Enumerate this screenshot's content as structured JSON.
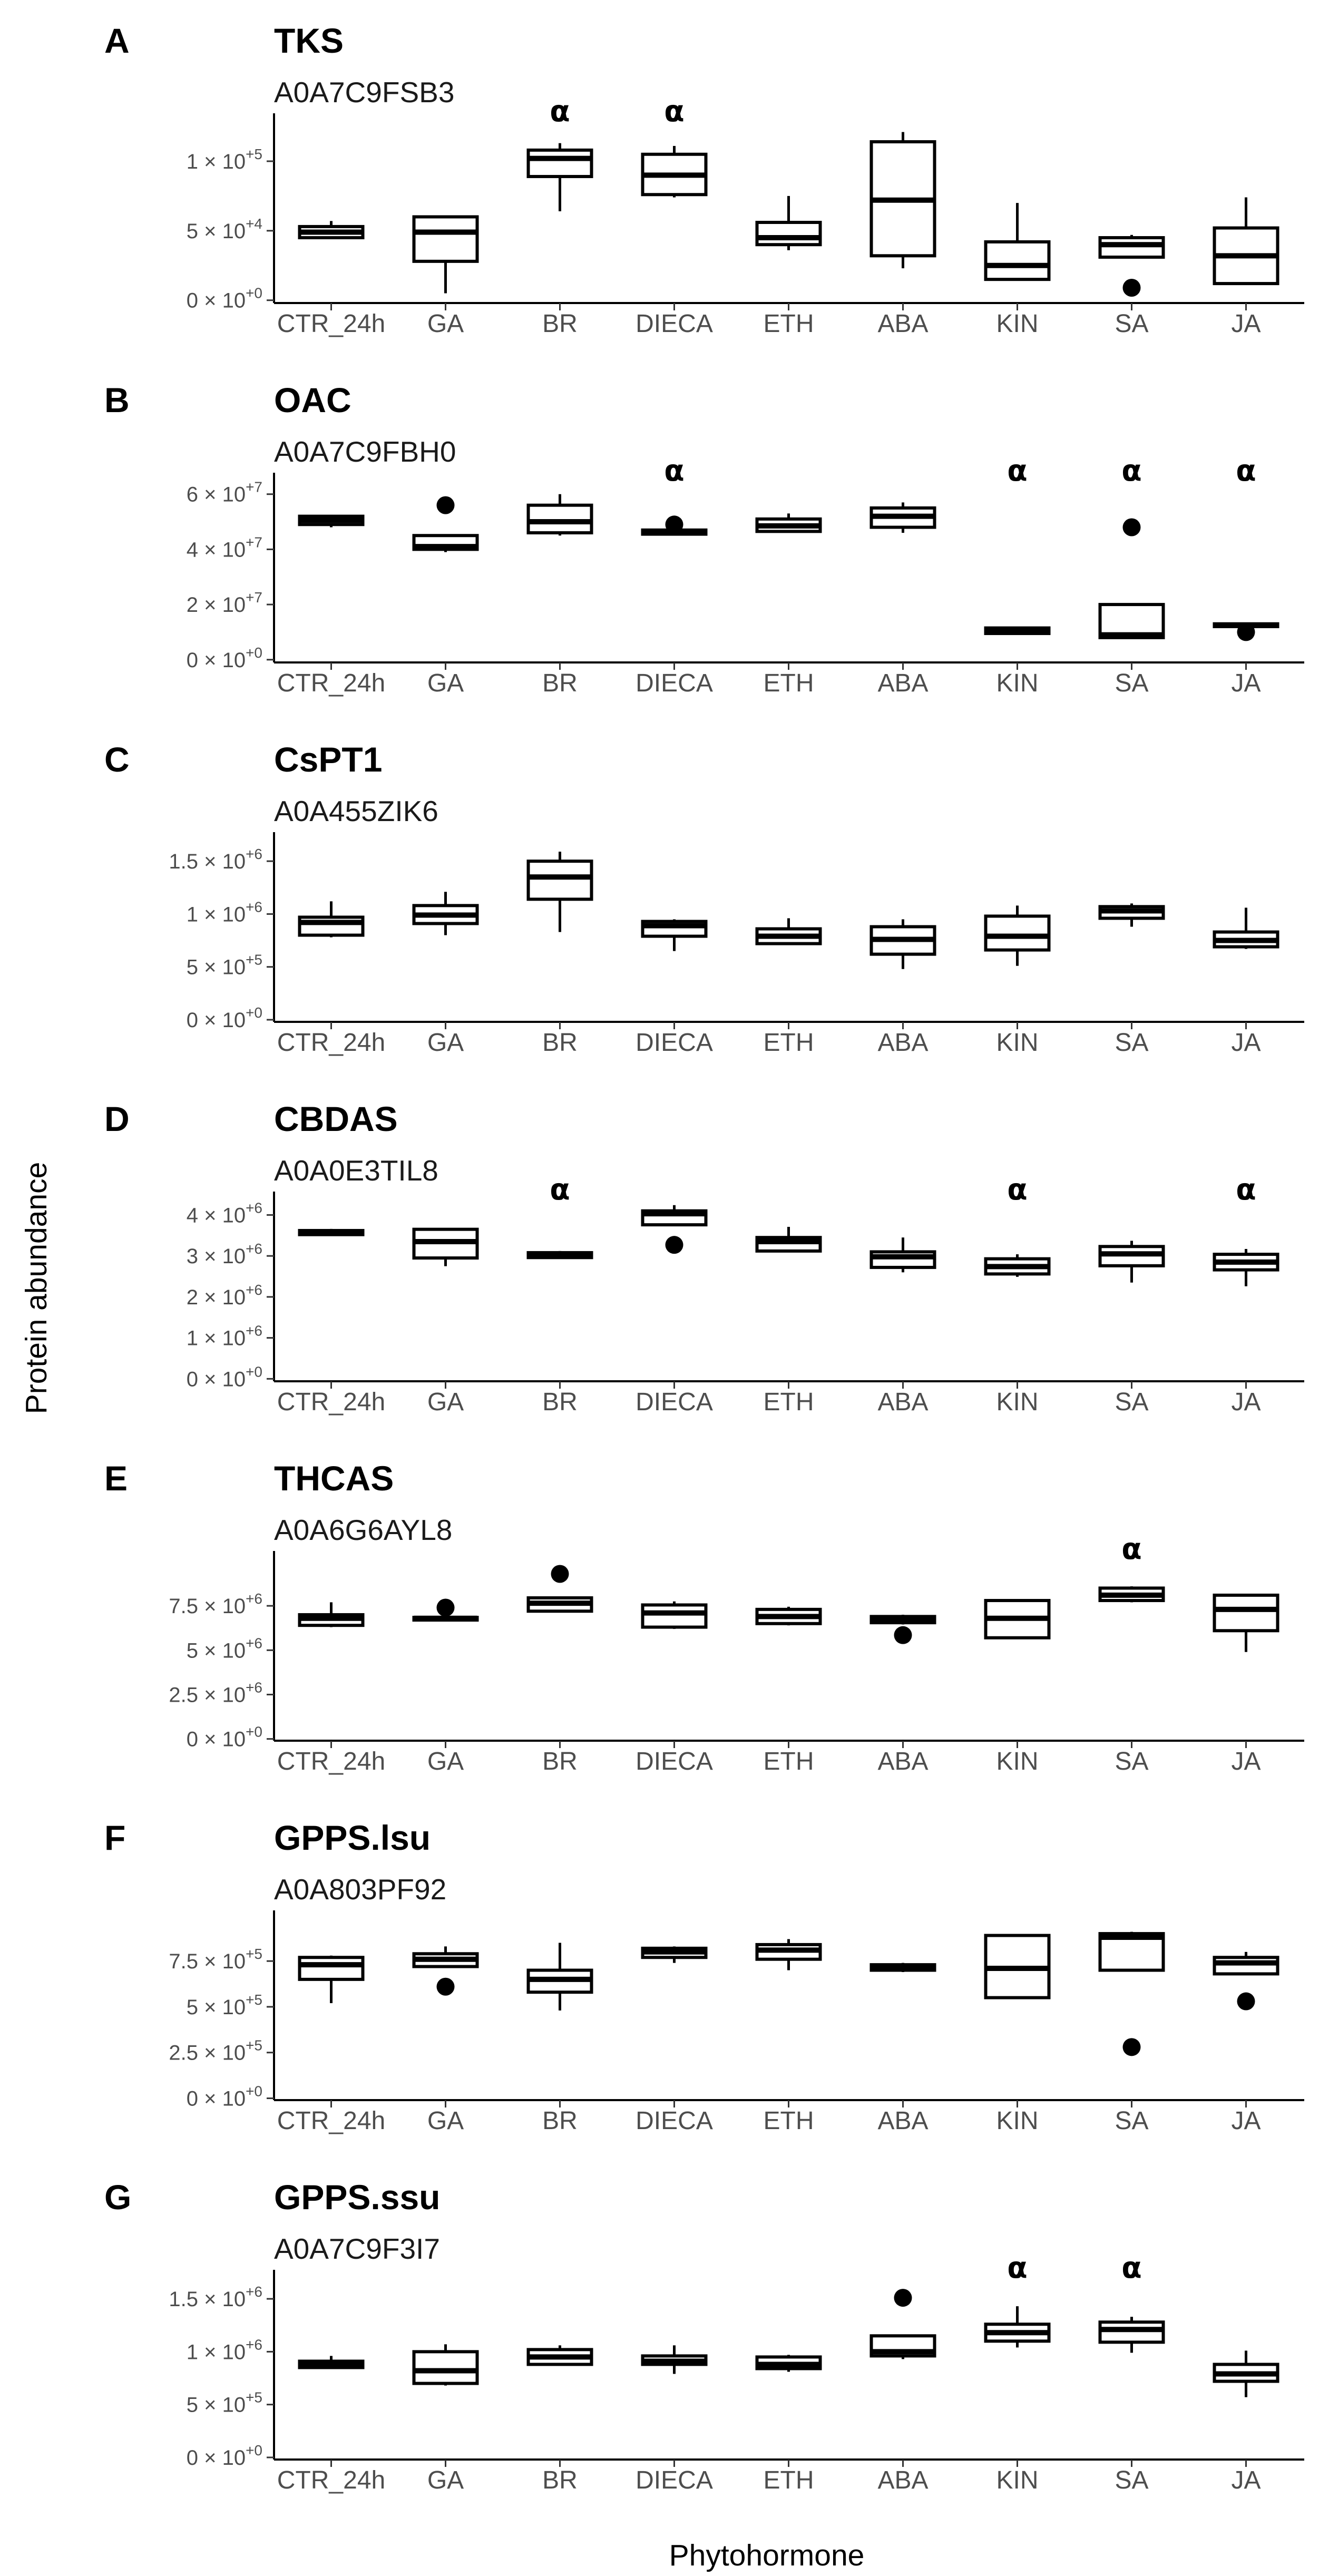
{
  "figure": {
    "y_axis_title": "Protein abundance",
    "x_axis_title": "Phytohormone",
    "categories": [
      "CTR_24h",
      "GA",
      "BR",
      "DIECA",
      "ETH",
      "ABA",
      "KIN",
      "SA",
      "JA"
    ]
  },
  "chart_data": [
    {
      "type": "box",
      "panel": "A",
      "title": "TKS",
      "subtitle": "A0A7C9FSB3",
      "yticks": [
        0,
        50000,
        100000
      ],
      "ytick_labels": [
        [
          "0 × 10",
          "+0"
        ],
        [
          "5 × 10",
          "+4"
        ],
        [
          "1 × 10",
          "+5"
        ]
      ],
      "ylim": [
        -2000,
        125000
      ],
      "boxes": [
        {
          "category": "CTR_24h",
          "lower": 44000,
          "q1": 45000,
          "median": 49000,
          "q3": 53000,
          "upper": 57000,
          "outliers": []
        },
        {
          "category": "GA",
          "lower": 5000,
          "q1": 28000,
          "median": 49000,
          "q3": 60000,
          "upper": 60000,
          "outliers": []
        },
        {
          "category": "BR",
          "lower": 64000,
          "q1": 89000,
          "median": 102000,
          "q3": 108000,
          "upper": 113000,
          "outliers": []
        },
        {
          "category": "DIECA",
          "lower": 74000,
          "q1": 76000,
          "median": 90000,
          "q3": 105000,
          "upper": 111000,
          "outliers": []
        },
        {
          "category": "ETH",
          "lower": 36000,
          "q1": 40000,
          "median": 45000,
          "q3": 56000,
          "upper": 75000,
          "outliers": []
        },
        {
          "category": "ABA",
          "lower": 23000,
          "q1": 32000,
          "median": 72000,
          "q3": 114000,
          "upper": 121000,
          "outliers": []
        },
        {
          "category": "KIN",
          "lower": 15000,
          "q1": 15000,
          "median": 25000,
          "q3": 42000,
          "upper": 70000,
          "outliers": []
        },
        {
          "category": "SA",
          "lower": 31000,
          "q1": 31000,
          "median": 40000,
          "q3": 45000,
          "upper": 47000,
          "outliers": [
            9000
          ]
        },
        {
          "category": "JA",
          "lower": 11000,
          "q1": 12000,
          "median": 32000,
          "q3": 52000,
          "upper": 74000,
          "outliers": []
        }
      ],
      "significance": [
        {
          "category": "BR",
          "label": "α"
        },
        {
          "category": "DIECA",
          "label": "α"
        }
      ]
    },
    {
      "type": "box",
      "panel": "B",
      "title": "OAC",
      "subtitle": "A0A7C9FBH0",
      "yticks": [
        0,
        20000000,
        40000000,
        60000000
      ],
      "ytick_labels": [
        [
          "0 × 10",
          "+0"
        ],
        [
          "2 × 10",
          "+7"
        ],
        [
          "4 × 10",
          "+7"
        ],
        [
          "6 × 10",
          "+7"
        ]
      ],
      "ylim": [
        -1000000,
        63000000
      ],
      "boxes": [
        {
          "category": "CTR_24h",
          "lower": 48000000,
          "q1": 49000000,
          "median": 50500000,
          "q3": 52000000,
          "upper": 52500000,
          "outliers": []
        },
        {
          "category": "GA",
          "lower": 39000000,
          "q1": 40000000,
          "median": 41000000,
          "q3": 45000000,
          "upper": 45000000,
          "outliers": [
            56000000
          ]
        },
        {
          "category": "BR",
          "lower": 45000000,
          "q1": 46000000,
          "median": 50000000,
          "q3": 56000000,
          "upper": 60000000,
          "outliers": []
        },
        {
          "category": "DIECA",
          "lower": 45000000,
          "q1": 45500000,
          "median": 46500000,
          "q3": 47000000,
          "upper": 47500000,
          "outliers": [
            49000000
          ]
        },
        {
          "category": "ETH",
          "lower": 46000000,
          "q1": 46500000,
          "median": 48500000,
          "q3": 51000000,
          "upper": 53000000,
          "outliers": []
        },
        {
          "category": "ABA",
          "lower": 46000000,
          "q1": 48000000,
          "median": 52000000,
          "q3": 55000000,
          "upper": 57000000,
          "outliers": []
        },
        {
          "category": "KIN",
          "lower": 9000000,
          "q1": 9500000,
          "median": 10500000,
          "q3": 11500000,
          "upper": 12000000,
          "outliers": []
        },
        {
          "category": "SA",
          "lower": 8000000,
          "q1": 8000000,
          "median": 9000000,
          "q3": 20000000,
          "upper": 20000000,
          "outliers": [
            48000000
          ]
        },
        {
          "category": "JA",
          "lower": 11000000,
          "q1": 12000000,
          "median": 12500000,
          "q3": 13000000,
          "upper": 13500000,
          "outliers": [
            10000000
          ]
        }
      ],
      "significance": [
        {
          "category": "DIECA",
          "label": "α"
        },
        {
          "category": "KIN",
          "label": "α"
        },
        {
          "category": "SA",
          "label": "α"
        },
        {
          "category": "JA",
          "label": "α"
        }
      ]
    },
    {
      "type": "box",
      "panel": "C",
      "title": "CsPT1",
      "subtitle": "A0A455ZIK6",
      "yticks": [
        0,
        500000,
        1000000,
        1500000
      ],
      "ytick_labels": [
        [
          "0 × 10",
          "+0"
        ],
        [
          "5 × 10",
          "+5"
        ],
        [
          "1 × 10",
          "+6"
        ],
        [
          "1.5 × 10",
          "+6"
        ]
      ],
      "ylim": [
        -20000,
        1650000
      ],
      "boxes": [
        {
          "category": "CTR_24h",
          "lower": 780000,
          "q1": 800000,
          "median": 920000,
          "q3": 970000,
          "upper": 1120000,
          "outliers": []
        },
        {
          "category": "GA",
          "lower": 800000,
          "q1": 910000,
          "median": 990000,
          "q3": 1080000,
          "upper": 1210000,
          "outliers": []
        },
        {
          "category": "BR",
          "lower": 830000,
          "q1": 1140000,
          "median": 1350000,
          "q3": 1500000,
          "upper": 1590000,
          "outliers": []
        },
        {
          "category": "DIECA",
          "lower": 650000,
          "q1": 790000,
          "median": 890000,
          "q3": 930000,
          "upper": 950000,
          "outliers": []
        },
        {
          "category": "ETH",
          "lower": 710000,
          "q1": 720000,
          "median": 790000,
          "q3": 860000,
          "upper": 960000,
          "outliers": []
        },
        {
          "category": "ABA",
          "lower": 480000,
          "q1": 620000,
          "median": 760000,
          "q3": 880000,
          "upper": 950000,
          "outliers": []
        },
        {
          "category": "KIN",
          "lower": 510000,
          "q1": 660000,
          "median": 790000,
          "q3": 980000,
          "upper": 1080000,
          "outliers": []
        },
        {
          "category": "SA",
          "lower": 880000,
          "q1": 960000,
          "median": 1030000,
          "q3": 1070000,
          "upper": 1100000,
          "outliers": []
        },
        {
          "category": "JA",
          "lower": 670000,
          "q1": 690000,
          "median": 750000,
          "q3": 830000,
          "upper": 1060000,
          "outliers": []
        }
      ],
      "significance": []
    },
    {
      "type": "box",
      "panel": "D",
      "title": "CBDAS",
      "subtitle": "A0A0E3TIL8",
      "yticks": [
        0,
        1000000,
        2000000,
        3000000,
        4000000
      ],
      "ytick_labels": [
        [
          "0 × 10",
          "+0"
        ],
        [
          "1 × 10",
          "+6"
        ],
        [
          "2 × 10",
          "+6"
        ],
        [
          "3 × 10",
          "+6"
        ],
        [
          "4 × 10",
          "+6"
        ]
      ],
      "ylim": [
        -60000,
        4250000
      ],
      "boxes": [
        {
          "category": "CTR_24h",
          "lower": 3500000,
          "q1": 3520000,
          "median": 3580000,
          "q3": 3620000,
          "upper": 3660000,
          "outliers": []
        },
        {
          "category": "GA",
          "lower": 2750000,
          "q1": 2950000,
          "median": 3350000,
          "q3": 3650000,
          "upper": 3650000,
          "outliers": []
        },
        {
          "category": "BR",
          "lower": 2950000,
          "q1": 2960000,
          "median": 3020000,
          "q3": 3080000,
          "upper": 3120000,
          "outliers": []
        },
        {
          "category": "DIECA",
          "lower": 3760000,
          "q1": 3760000,
          "median": 4030000,
          "q3": 4100000,
          "upper": 4240000,
          "outliers": [
            3270000
          ]
        },
        {
          "category": "ETH",
          "lower": 3090000,
          "q1": 3120000,
          "median": 3350000,
          "q3": 3450000,
          "upper": 3710000,
          "outliers": []
        },
        {
          "category": "ABA",
          "lower": 2600000,
          "q1": 2720000,
          "median": 2980000,
          "q3": 3100000,
          "upper": 3450000,
          "outliers": []
        },
        {
          "category": "KIN",
          "lower": 2490000,
          "q1": 2560000,
          "median": 2740000,
          "q3": 2930000,
          "upper": 3040000,
          "outliers": []
        },
        {
          "category": "SA",
          "lower": 2350000,
          "q1": 2760000,
          "median": 3050000,
          "q3": 3230000,
          "upper": 3370000,
          "outliers": []
        },
        {
          "category": "JA",
          "lower": 2260000,
          "q1": 2660000,
          "median": 2850000,
          "q3": 3040000,
          "upper": 3170000,
          "outliers": []
        }
      ],
      "significance": [
        {
          "category": "BR",
          "label": "α"
        },
        {
          "category": "KIN",
          "label": "α"
        },
        {
          "category": "JA",
          "label": "α"
        }
      ]
    },
    {
      "type": "box",
      "panel": "E",
      "title": "THCAS",
      "subtitle": "A0A6G6AYL8",
      "yticks": [
        0,
        2500000,
        5000000,
        7500000
      ],
      "ytick_labels": [
        [
          "0 × 10",
          "+0"
        ],
        [
          "2.5 × 10",
          "+6"
        ],
        [
          "5 × 10",
          "+6"
        ],
        [
          "7.5 × 10",
          "+6"
        ]
      ],
      "ylim": [
        -100000,
        9850000
      ],
      "boxes": [
        {
          "category": "CTR_24h",
          "lower": 6300000,
          "q1": 6400000,
          "median": 6800000,
          "q3": 7000000,
          "upper": 7700000,
          "outliers": []
        },
        {
          "category": "GA",
          "lower": 6700000,
          "q1": 6700000,
          "median": 6800000,
          "q3": 6850000,
          "upper": 6900000,
          "outliers": [
            7400000
          ]
        },
        {
          "category": "BR",
          "lower": 7200000,
          "q1": 7200000,
          "median": 7650000,
          "q3": 7950000,
          "upper": 8000000,
          "outliers": [
            9300000
          ]
        },
        {
          "category": "DIECA",
          "lower": 6200000,
          "q1": 6300000,
          "median": 7100000,
          "q3": 7550000,
          "upper": 7750000,
          "outliers": []
        },
        {
          "category": "ETH",
          "lower": 6400000,
          "q1": 6500000,
          "median": 6900000,
          "q3": 7300000,
          "upper": 7450000,
          "outliers": []
        },
        {
          "category": "ABA",
          "lower": 6450000,
          "q1": 6550000,
          "median": 6750000,
          "q3": 6900000,
          "upper": 7000000,
          "outliers": [
            5850000
          ]
        },
        {
          "category": "KIN",
          "lower": 5700000,
          "q1": 5700000,
          "median": 6800000,
          "q3": 7800000,
          "upper": 7800000,
          "outliers": []
        },
        {
          "category": "SA",
          "lower": 7700000,
          "q1": 7800000,
          "median": 8100000,
          "q3": 8500000,
          "upper": 8600000,
          "outliers": []
        },
        {
          "category": "JA",
          "lower": 4900000,
          "q1": 6100000,
          "median": 7300000,
          "q3": 8100000,
          "upper": 8100000,
          "outliers": []
        }
      ],
      "significance": [
        {
          "category": "SA",
          "label": "α"
        }
      ]
    },
    {
      "type": "box",
      "panel": "F",
      "title": "GPPS.lsu",
      "subtitle": "A0A803PF92",
      "yticks": [
        0,
        250000,
        500000,
        750000
      ],
      "ytick_labels": [
        [
          "0 × 10",
          "+0"
        ],
        [
          "2.5 × 10",
          "+5"
        ],
        [
          "5 × 10",
          "+5"
        ],
        [
          "7.5 × 10",
          "+5"
        ]
      ],
      "ylim": [
        -10000,
        955000
      ],
      "boxes": [
        {
          "category": "CTR_24h",
          "lower": 520000,
          "q1": 650000,
          "median": 730000,
          "q3": 770000,
          "upper": 780000,
          "outliers": []
        },
        {
          "category": "GA",
          "lower": 720000,
          "q1": 720000,
          "median": 760000,
          "q3": 790000,
          "upper": 830000,
          "outliers": [
            610000
          ]
        },
        {
          "category": "BR",
          "lower": 480000,
          "q1": 580000,
          "median": 650000,
          "q3": 700000,
          "upper": 850000,
          "outliers": []
        },
        {
          "category": "DIECA",
          "lower": 740000,
          "q1": 770000,
          "median": 800000,
          "q3": 820000,
          "upper": 830000,
          "outliers": []
        },
        {
          "category": "ETH",
          "lower": 700000,
          "q1": 760000,
          "median": 810000,
          "q3": 840000,
          "upper": 870000,
          "outliers": []
        },
        {
          "category": "ABA",
          "lower": 690000,
          "q1": 700000,
          "median": 720000,
          "q3": 730000,
          "upper": 740000,
          "outliers": []
        },
        {
          "category": "KIN",
          "lower": 550000,
          "q1": 550000,
          "median": 710000,
          "q3": 890000,
          "upper": 890000,
          "outliers": []
        },
        {
          "category": "SA",
          "lower": 700000,
          "q1": 700000,
          "median": 880000,
          "q3": 900000,
          "upper": 910000,
          "outliers": [
            280000
          ]
        },
        {
          "category": "JA",
          "lower": 680000,
          "q1": 680000,
          "median": 740000,
          "q3": 770000,
          "upper": 800000,
          "outliers": [
            530000
          ]
        }
      ],
      "significance": []
    },
    {
      "type": "box",
      "panel": "G",
      "title": "GPPS.ssu",
      "subtitle": "A0A7C9F3I7",
      "yticks": [
        0,
        500000,
        1000000,
        1500000
      ],
      "ytick_labels": [
        [
          "0 × 10",
          "+0"
        ],
        [
          "5 × 10",
          "+5"
        ],
        [
          "1 × 10",
          "+6"
        ],
        [
          "1.5 × 10",
          "+6"
        ]
      ],
      "ylim": [
        -20000,
        1650000
      ],
      "boxes": [
        {
          "category": "CTR_24h",
          "lower": 840000,
          "q1": 850000,
          "median": 880000,
          "q3": 910000,
          "upper": 960000,
          "outliers": []
        },
        {
          "category": "GA",
          "lower": 680000,
          "q1": 700000,
          "median": 820000,
          "q3": 1000000,
          "upper": 1070000,
          "outliers": []
        },
        {
          "category": "BR",
          "lower": 880000,
          "q1": 880000,
          "median": 950000,
          "q3": 1020000,
          "upper": 1060000,
          "outliers": []
        },
        {
          "category": "DIECA",
          "lower": 790000,
          "q1": 880000,
          "median": 910000,
          "q3": 960000,
          "upper": 1060000,
          "outliers": []
        },
        {
          "category": "ETH",
          "lower": 810000,
          "q1": 840000,
          "median": 880000,
          "q3": 950000,
          "upper": 970000,
          "outliers": []
        },
        {
          "category": "ABA",
          "lower": 930000,
          "q1": 960000,
          "median": 1000000,
          "q3": 1150000,
          "upper": 1150000,
          "outliers": [
            1510000
          ]
        },
        {
          "category": "KIN",
          "lower": 1040000,
          "q1": 1100000,
          "median": 1180000,
          "q3": 1260000,
          "upper": 1430000,
          "outliers": []
        },
        {
          "category": "SA",
          "lower": 990000,
          "q1": 1090000,
          "median": 1210000,
          "q3": 1280000,
          "upper": 1330000,
          "outliers": []
        },
        {
          "category": "JA",
          "lower": 570000,
          "q1": 720000,
          "median": 790000,
          "q3": 880000,
          "upper": 1010000,
          "outliers": []
        }
      ],
      "significance": [
        {
          "category": "KIN",
          "label": "α"
        },
        {
          "category": "SA",
          "label": "α"
        }
      ]
    }
  ]
}
